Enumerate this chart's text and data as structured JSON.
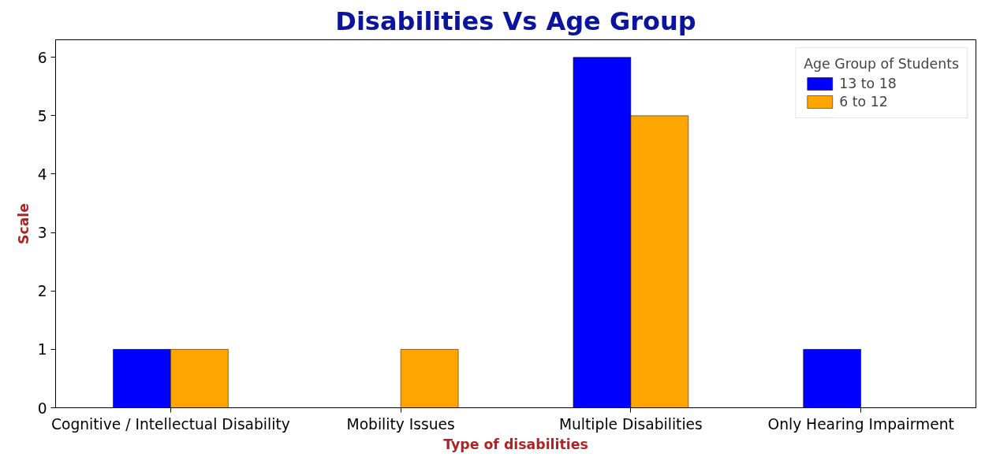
{
  "chart_data": {
    "type": "bar",
    "title": "Disabilities Vs Age Group",
    "xlabel": "Type of disabilities",
    "ylabel": "Scale",
    "legend_title": "Age Group of Students",
    "categories": [
      "Cognitive / Intellectual Disability",
      "Mobility Issues",
      "Multiple Disabilities",
      "Only Hearing Impairment"
    ],
    "series": [
      {
        "name": "13 to 18",
        "color": "#0000ff",
        "values": [
          1,
          null,
          6,
          1
        ]
      },
      {
        "name": "6 to 12",
        "color": "#ffa500",
        "values": [
          1,
          1,
          5,
          null
        ]
      }
    ],
    "ylim": [
      0,
      6.3
    ],
    "yticks": [
      0,
      1,
      2,
      3,
      4,
      5,
      6
    ],
    "grid": false,
    "legend": "top right"
  }
}
